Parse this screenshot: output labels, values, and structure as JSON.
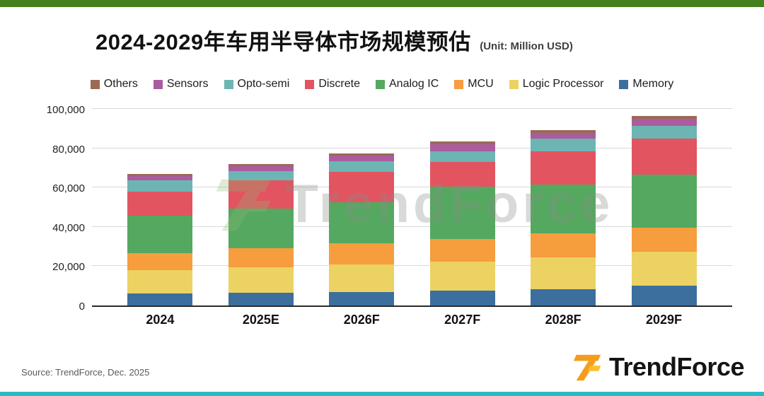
{
  "page": {
    "source_text": "Source: TrendForce, Dec. 2025",
    "logo_text": "TrendForce",
    "watermark_text": "TrendForce",
    "accent_colors": {
      "top_bar": "#43811d",
      "bottom_bar": "#2bbac4",
      "logo_orange": "#f49d1c",
      "logo_yellow": "#fbc02d",
      "watermark_green": "#8cb873"
    }
  },
  "chart_data": {
    "type": "bar",
    "stacked": true,
    "title": "2024-2029年车用半导体市场规模预估",
    "unit_label": "(Unit: Million USD)",
    "xlabel": "",
    "ylabel": "",
    "categories": [
      "2024",
      "2025E",
      "2026F",
      "2027F",
      "2028F",
      "2029F"
    ],
    "series": [
      {
        "name": "Memory",
        "color": "#3c6e9e",
        "values": [
          6000,
          6500,
          7000,
          7500,
          8500,
          10000
        ]
      },
      {
        "name": "Logic Processor",
        "color": "#ecd262",
        "values": [
          12000,
          13000,
          14000,
          15000,
          16000,
          17500
        ]
      },
      {
        "name": "MCU",
        "color": "#f69d3d",
        "values": [
          9000,
          10000,
          11000,
          11500,
          12500,
          12500
        ]
      },
      {
        "name": "Analog IC",
        "color": "#55a860",
        "values": [
          19000,
          20000,
          21000,
          27000,
          25000,
          27000
        ]
      },
      {
        "name": "Discrete",
        "color": "#e25460",
        "values": [
          12500,
          14500,
          15500,
          12500,
          17000,
          18500
        ]
      },
      {
        "name": "Opto-semi",
        "color": "#6cb5b3",
        "values": [
          5500,
          5000,
          5500,
          5500,
          6500,
          6500
        ]
      },
      {
        "name": "Sensors",
        "color": "#ab5c9f",
        "values": [
          2500,
          2500,
          3000,
          3500,
          3000,
          3500
        ]
      },
      {
        "name": "Others",
        "color": "#9a6a56",
        "values": [
          1000,
          1000,
          1000,
          1500,
          1500,
          1500
        ]
      }
    ],
    "totals": [
      67500,
      72500,
      78000,
      84000,
      90000,
      97000
    ],
    "ylim": [
      0,
      100000
    ],
    "ytick_step": 20000,
    "grid": true,
    "legend_position": "top",
    "legend_order_note": "legend shown left-to-right as reverse of stack (Others first, Memory last)"
  }
}
